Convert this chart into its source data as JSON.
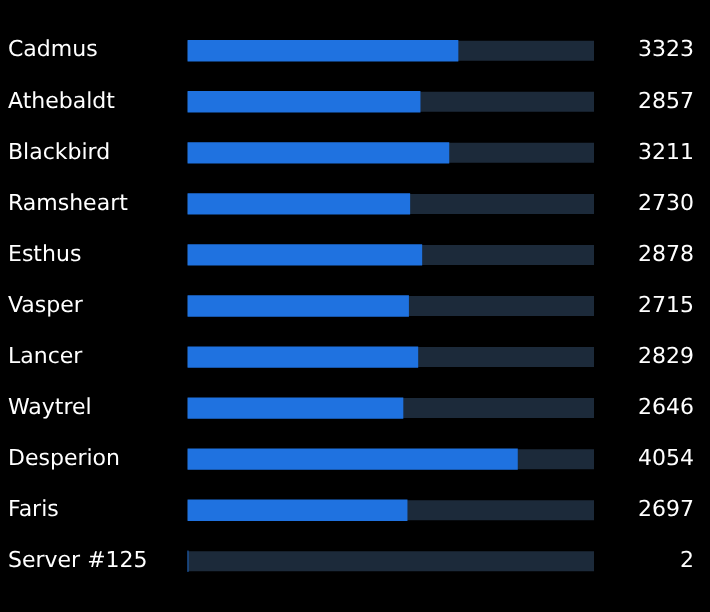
{
  "chart_data": {
    "type": "bar",
    "orientation": "horizontal",
    "categories": [
      "Cadmus",
      "Athebaldt",
      "Blackbird",
      "Ramsheart",
      "Esthus",
      "Vasper",
      "Lancer",
      "Waytrel",
      "Desperion",
      "Faris",
      "Server #125"
    ],
    "values": [
      3323,
      2857,
      3211,
      2730,
      2878,
      2715,
      2829,
      2646,
      4054,
      2697,
      2
    ],
    "color": "#1f72e0",
    "xlim": [
      0,
      5000
    ],
    "tick_labels": "y",
    "legend": false,
    "data_labels": true
  }
}
